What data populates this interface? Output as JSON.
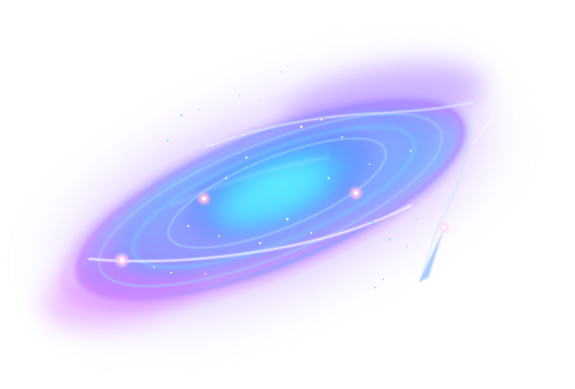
{
  "image": {
    "background_color": "#ffffff",
    "subject": "galaxy-vortex-effect",
    "palette": {
      "outer_glow": "#b98cff",
      "magenta": "#d65cff",
      "violet": "#7a5cff",
      "blue": "#4b8dff",
      "cyan": "#3fd2ff",
      "highlight": "#ffffff"
    }
  }
}
